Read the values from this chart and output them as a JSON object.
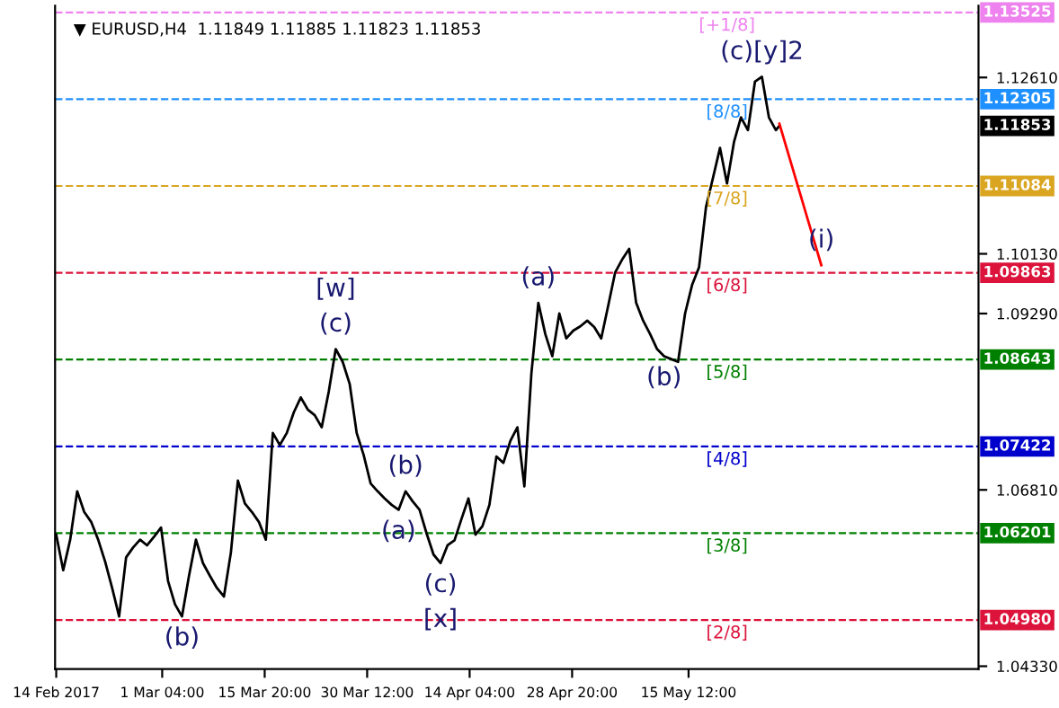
{
  "chart_data": {
    "type": "line",
    "title": "▼ EURUSD,H4  1.11849 1.11885 1.11823 1.11853",
    "xlim": [
      "2017-02-13T20:00",
      "2017-06-26"
    ],
    "ylim": [
      1.0429,
      1.1362
    ],
    "xticks": [
      {
        "value": "2017-02-14",
        "label": "14 Feb 2017"
      },
      {
        "value": "2017-03-01T04:00",
        "label": "1 Mar 04:00"
      },
      {
        "value": "2017-03-15T20:00",
        "label": "15 Mar 20:00"
      },
      {
        "value": "2017-03-30T12:00",
        "label": "30 Mar 12:00"
      },
      {
        "value": "2017-04-14T04:00",
        "label": "14 Apr 04:00"
      },
      {
        "value": "2017-04-28T20:00",
        "label": "28 Apr 20:00"
      },
      {
        "value": "2017-05-15T12:00",
        "label": "15 May 12:00"
      }
    ],
    "yticks": [
      {
        "value": 1.0433,
        "label": "1.04330"
      },
      {
        "value": 1.0681,
        "label": "1.06810"
      },
      {
        "value": 1.0929,
        "label": "1.09290"
      },
      {
        "value": 1.1013,
        "label": "1.10130"
      },
      {
        "value": 1.1261,
        "label": "1.12610"
      }
    ],
    "series": [
      {
        "color": "#000000",
        "x": [
          "2017-02-14",
          "2017-02-15",
          "2017-02-16",
          "2017-02-17",
          "2017-02-18",
          "2017-02-19",
          "2017-02-20",
          "2017-02-21",
          "2017-02-22",
          "2017-02-23",
          "2017-02-24",
          "2017-02-25",
          "2017-02-26",
          "2017-02-27",
          "2017-02-28",
          "2017-03-01",
          "2017-03-02",
          "2017-03-03",
          "2017-03-04",
          "2017-03-05",
          "2017-03-06",
          "2017-03-07",
          "2017-03-08",
          "2017-03-09",
          "2017-03-10",
          "2017-03-11",
          "2017-03-12",
          "2017-03-13",
          "2017-03-14",
          "2017-03-15",
          "2017-03-16",
          "2017-03-17",
          "2017-03-18",
          "2017-03-19",
          "2017-03-20",
          "2017-03-21",
          "2017-03-22",
          "2017-03-23",
          "2017-03-24",
          "2017-03-25",
          "2017-03-26",
          "2017-03-27",
          "2017-03-28",
          "2017-03-29",
          "2017-03-30",
          "2017-03-31",
          "2017-04-01",
          "2017-04-02",
          "2017-04-03",
          "2017-04-04",
          "2017-04-05",
          "2017-04-06",
          "2017-04-07",
          "2017-04-08",
          "2017-04-09",
          "2017-04-10",
          "2017-04-11",
          "2017-04-12",
          "2017-04-13",
          "2017-04-14",
          "2017-04-15",
          "2017-04-16",
          "2017-04-17",
          "2017-04-18",
          "2017-04-19",
          "2017-04-20",
          "2017-04-21",
          "2017-04-22",
          "2017-04-23",
          "2017-04-24",
          "2017-04-25",
          "2017-04-26",
          "2017-04-27",
          "2017-04-28",
          "2017-04-29",
          "2017-04-30",
          "2017-05-01",
          "2017-05-02",
          "2017-05-03",
          "2017-05-04",
          "2017-05-05",
          "2017-05-06",
          "2017-05-07",
          "2017-05-08",
          "2017-05-09",
          "2017-05-10",
          "2017-05-11",
          "2017-05-12",
          "2017-05-13",
          "2017-05-14",
          "2017-05-15",
          "2017-05-16",
          "2017-05-17",
          "2017-05-18",
          "2017-05-19",
          "2017-05-20",
          "2017-05-21",
          "2017-05-22",
          "2017-05-23",
          "2017-05-24",
          "2017-05-25",
          "2017-05-26",
          "2017-05-27",
          "2017-05-28",
          "2017-05-28T12:00"
        ],
        "values": [
          1.0618,
          1.0568,
          1.0611,
          1.0679,
          1.065,
          1.0636,
          1.0611,
          1.058,
          1.0543,
          1.0503,
          1.0586,
          1.06,
          1.0611,
          1.0603,
          1.0615,
          1.0628,
          1.0553,
          1.052,
          1.0503,
          1.056,
          1.0611,
          1.0578,
          1.056,
          1.0543,
          1.0531,
          1.0593,
          1.0694,
          1.0662,
          1.065,
          1.0636,
          1.0611,
          1.0761,
          1.0744,
          1.0761,
          1.079,
          1.0811,
          1.0794,
          1.0786,
          1.0769,
          1.0819,
          1.0879,
          1.0861,
          1.083,
          1.0761,
          1.073,
          1.069,
          1.0679,
          1.0669,
          1.066,
          1.0653,
          1.0679,
          1.0665,
          1.0653,
          1.062,
          1.059,
          1.0578,
          1.0603,
          1.061,
          1.064,
          1.0669,
          1.0618,
          1.063,
          1.066,
          1.0728,
          1.0719,
          1.075,
          1.0769,
          1.0686,
          1.0844,
          1.0944,
          1.09,
          1.0869,
          1.0929,
          1.0894,
          1.0905,
          1.0911,
          1.0919,
          1.091,
          1.0894,
          1.094,
          1.0987,
          1.1005,
          1.102,
          1.0944,
          1.0919,
          1.09,
          1.0879,
          1.0869,
          1.0865,
          1.0861,
          1.0929,
          1.0969,
          1.0994,
          1.1079,
          1.112,
          1.1162,
          1.1112,
          1.117,
          1.1205,
          1.1187,
          1.1255,
          1.1262,
          1.1205,
          1.1187,
          1.1193
        ]
      },
      {
        "color": "#ff0000",
        "x": [
          "2017-05-28T12:00",
          "2017-06-03T12:00"
        ],
        "values": [
          1.1196,
          1.0997
        ]
      }
    ],
    "ref_lines": [
      {
        "axis": "y",
        "value": 1.13525,
        "label": "1.13525",
        "color": "#ee82ee",
        "line_style": "dashed"
      },
      {
        "axis": "y",
        "value": 1.12305,
        "label": "1.12305",
        "color": "#1e90ff",
        "line_style": "dashed"
      },
      {
        "axis": "y",
        "value": 1.11084,
        "label": "1.11084",
        "color": "#daa520",
        "line_style": "dashed"
      },
      {
        "axis": "y",
        "value": 1.09863,
        "label": "1.09863",
        "color": "#dc143c",
        "line_style": "dashed"
      },
      {
        "axis": "y",
        "value": 1.08643,
        "label": "1.08643",
        "color": "#008000",
        "line_style": "dashed"
      },
      {
        "axis": "y",
        "value": 1.07422,
        "label": "1.07422",
        "color": "#0000cd",
        "line_style": "dashed"
      },
      {
        "axis": "y",
        "value": 1.06201,
        "label": "1.06201",
        "color": "#008000",
        "line_style": "dashed"
      },
      {
        "axis": "y",
        "value": 1.0498,
        "label": "1.04980",
        "color": "#dc143c",
        "line_style": "dashed"
      }
    ],
    "annotations": [
      {
        "text": "[+1/8]",
        "x": "2017-05-21",
        "y": 1.13525
      },
      {
        "text": "[8/8]",
        "x": "2017-05-21",
        "y": 1.12305
      },
      {
        "text": "[7/8]",
        "x": "2017-05-21",
        "y": 1.11084
      },
      {
        "text": "[6/8]",
        "x": "2017-05-21",
        "y": 1.09863
      },
      {
        "text": "[5/8]",
        "x": "2017-05-21",
        "y": 1.08643
      },
      {
        "text": "[4/8]",
        "x": "2017-05-21",
        "y": 1.07422
      },
      {
        "text": "[3/8]",
        "x": "2017-05-21",
        "y": 1.06201
      },
      {
        "text": "[2/8]",
        "x": "2017-05-21",
        "y": 1.0498
      },
      {
        "text": "(c)",
        "x": "2017-03-26",
        "y": 1.0879
      },
      {
        "text": "[w]",
        "x": "2017-03-26",
        "y": 1.0879
      },
      {
        "text": "(b)",
        "x": "2017-03-04",
        "y": 1.0503
      },
      {
        "text": "(b)",
        "x": "2017-04-05",
        "y": 1.0679
      },
      {
        "text": "(a)",
        "x": "2017-04-04",
        "y": 1.0653
      },
      {
        "text": "(c)",
        "x": "2017-04-10",
        "y": 1.0578
      },
      {
        "text": "[x]",
        "x": "2017-04-10",
        "y": 1.0578
      },
      {
        "text": "(a)",
        "x": "2017-04-24",
        "y": 1.0944
      },
      {
        "text": "(b)",
        "x": "2017-05-12",
        "y": 1.0869
      },
      {
        "text": "(c)[y]2",
        "x": "2017-05-26",
        "y": 1.1262
      },
      {
        "text": "(i)",
        "x": "2017-06-03T12:00",
        "y": 1.0997
      },
      "1.11853"
    ]
  }
}
